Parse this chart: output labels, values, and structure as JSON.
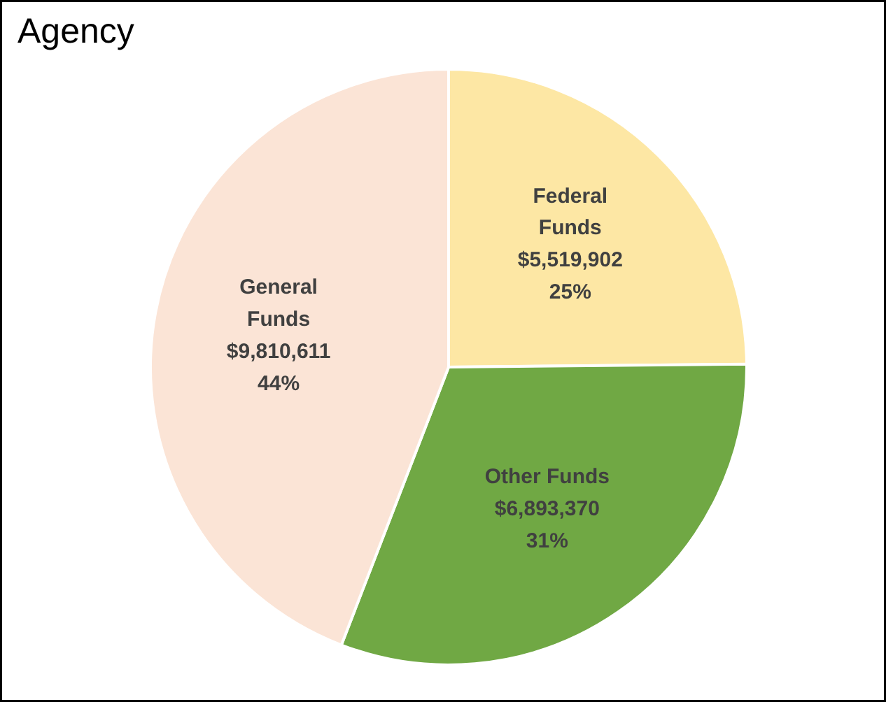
{
  "chart_data": {
    "type": "pie",
    "title": "Agency",
    "categories": [
      "Federal\nFunds",
      "Other Funds",
      "General\nFunds"
    ],
    "values": [
      5519902,
      6893370,
      9810611
    ],
    "value_labels": [
      "$5,519,902\n25%",
      "$6,893,370\n31%",
      "$9,810,611\n44%"
    ],
    "colors": [
      "#fde7a4",
      "#70a844",
      "#fbe4d6"
    ]
  }
}
